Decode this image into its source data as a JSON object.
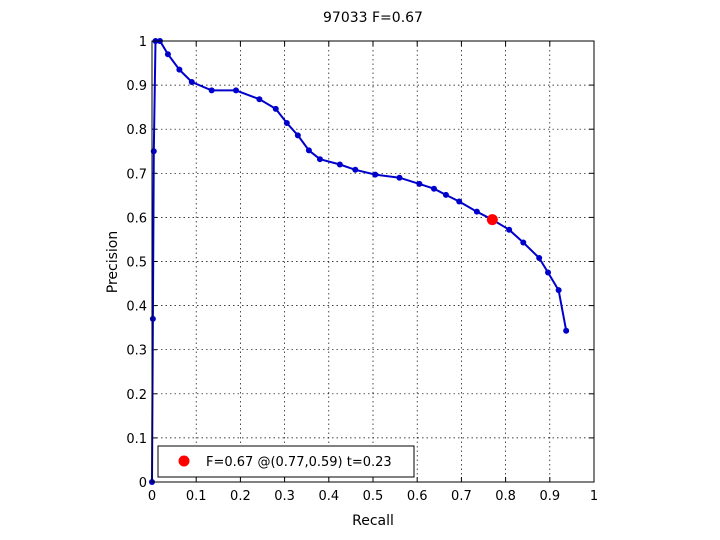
{
  "chart_data": {
    "type": "line",
    "title": "97033 F=0.67",
    "xlabel": "Recall",
    "ylabel": "Precision",
    "xlim": [
      0,
      1
    ],
    "ylim": [
      0,
      1
    ],
    "xticks": [
      "0",
      "0.1",
      "0.2",
      "0.3",
      "0.4",
      "0.5",
      "0.6",
      "0.7",
      "0.8",
      "0.9",
      "1"
    ],
    "yticks": [
      "0",
      "0.1",
      "0.2",
      "0.3",
      "0.4",
      "0.5",
      "0.6",
      "0.7",
      "0.8",
      "0.9",
      "1"
    ],
    "grid": true,
    "legend_position": "bottom-left",
    "colors": {
      "curve": "#0000cc",
      "best": "#ff0000"
    },
    "series": [
      {
        "x": [
          0.0,
          0.002,
          0.004,
          0.008,
          0.018,
          0.036,
          0.062,
          0.09,
          0.135,
          0.19,
          0.243,
          0.28,
          0.305,
          0.33,
          0.355,
          0.38,
          0.425,
          0.46,
          0.505,
          0.56,
          0.605,
          0.638,
          0.665,
          0.695,
          0.735,
          0.77,
          0.808,
          0.84,
          0.876,
          0.896,
          0.92,
          0.937
        ],
        "y": [
          0.0,
          0.37,
          0.75,
          1.0,
          1.0,
          0.97,
          0.935,
          0.907,
          0.888,
          0.888,
          0.868,
          0.846,
          0.814,
          0.786,
          0.752,
          0.732,
          0.72,
          0.708,
          0.697,
          0.69,
          0.676,
          0.665,
          0.651,
          0.636,
          0.613,
          0.595,
          0.572,
          0.543,
          0.508,
          0.475,
          0.435,
          0.343
        ]
      }
    ],
    "best_point": {
      "x": 0.77,
      "y": 0.595
    },
    "legend": {
      "label": "F=0.67 @(0.77,0.59) t=0.23"
    }
  }
}
